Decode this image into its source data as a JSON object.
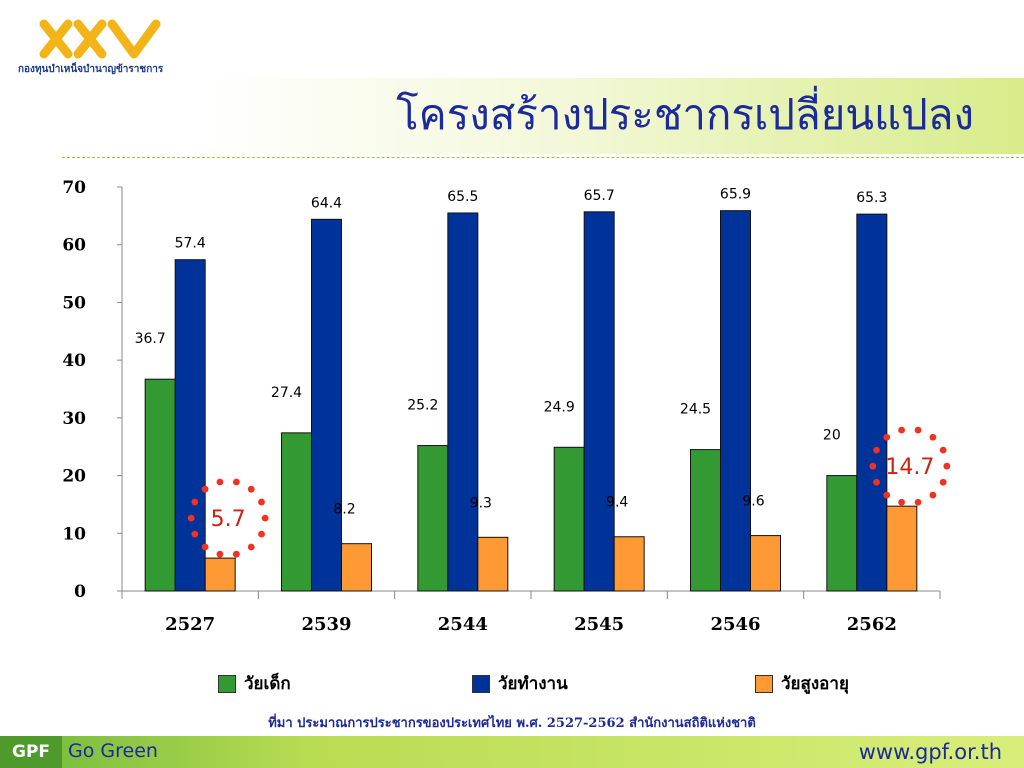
{
  "header": {
    "logo_subtitle": "กองทุนบำเหน็จบำนาญข้าราชการ",
    "title": "โครงสร้างประชากรเปลี่ยนแปลง"
  },
  "chart_data": {
    "type": "bar",
    "categories": [
      "2527",
      "2539",
      "2544",
      "2545",
      "2546",
      "2562"
    ],
    "series": [
      {
        "name": "วัยเด็ก",
        "color": "#339933",
        "values": [
          36.7,
          27.4,
          25.2,
          24.9,
          24.5,
          20
        ]
      },
      {
        "name": "วัยทำงาน",
        "color": "#003399",
        "values": [
          57.4,
          64.4,
          65.5,
          65.7,
          65.9,
          65.3
        ]
      },
      {
        "name": "วัยสูงอายุ",
        "color": "#FF9933",
        "values": [
          5.7,
          8.2,
          9.3,
          9.4,
          9.6,
          14.7
        ]
      }
    ],
    "data_labels": [
      [
        "36.7",
        "57.4",
        "5.7"
      ],
      [
        "27.4",
        "64.4",
        "8.2"
      ],
      [
        "25.2",
        "65.5",
        "9.3"
      ],
      [
        "24.9",
        "65.7",
        "9.4"
      ],
      [
        "24.5",
        "65.9",
        "9.6"
      ],
      [
        "20",
        "65.3",
        "14.7"
      ]
    ],
    "ylim": [
      0,
      70
    ],
    "yticks": [
      "0",
      "10",
      "20",
      "30",
      "40",
      "50",
      "60",
      "70"
    ],
    "highlight_color": "#ee3322",
    "highlights": [
      {
        "category": "2527",
        "series": "วัยสูงอายุ",
        "label": "5.7"
      },
      {
        "category": "2562",
        "series": "วัยสูงอายุ",
        "label": "14.7"
      }
    ],
    "legend_position": "bottom"
  },
  "source_note": "ที่มา ประมาณการประชากรของประเทศไทย พ.ศ. 2527-2562 สำนักงานสถิติแห่งชาติ",
  "footer": {
    "brand": "GPF",
    "slogan": "Go Green",
    "website": "www.gpf.or.th"
  }
}
